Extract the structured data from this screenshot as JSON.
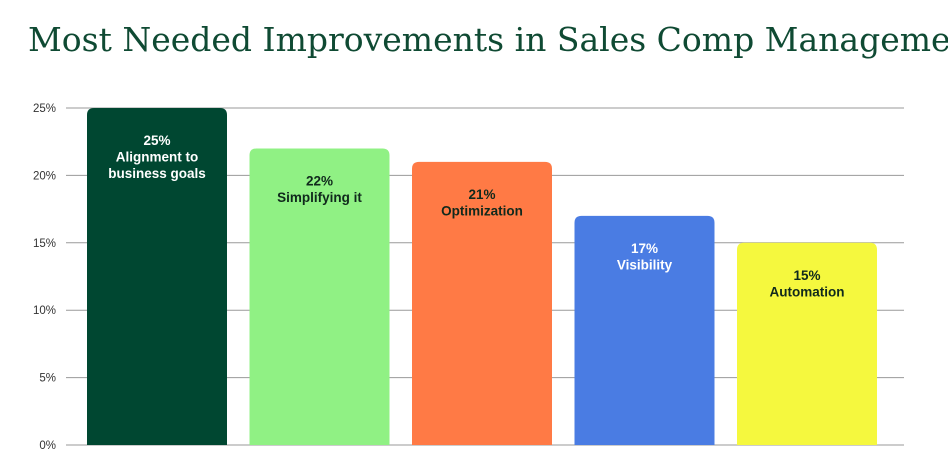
{
  "chart_data": {
    "type": "bar",
    "title": "Most Needed Improvements in Sales Comp Management",
    "xlabel": "",
    "ylabel": "",
    "ylim": [
      0,
      25
    ],
    "yticks": [
      0,
      5,
      10,
      15,
      20,
      25
    ],
    "ytick_labels": [
      "0%",
      "5%",
      "10%",
      "15%",
      "20%",
      "25%"
    ],
    "grid": true,
    "legend": "none",
    "bars": [
      {
        "category": "Alignment to business goals",
        "value": 25,
        "value_label": "25%",
        "label_lines": [
          "Alignment to",
          "business goals"
        ],
        "color": "#004731",
        "text_color": "#ffffff"
      },
      {
        "category": "Simplifying it",
        "value": 22,
        "value_label": "22%",
        "label_lines": [
          "Simplifying it"
        ],
        "color": "#90f184",
        "text_color": "#10291c"
      },
      {
        "category": "Optimization",
        "value": 21,
        "value_label": "21%",
        "label_lines": [
          "Optimization"
        ],
        "color": "#ff7a45",
        "text_color": "#10291c"
      },
      {
        "category": "Visibility",
        "value": 17,
        "value_label": "17%",
        "label_lines": [
          "Visibility"
        ],
        "color": "#4a7ce3",
        "text_color": "#ffffff"
      },
      {
        "category": "Automation",
        "value": 15,
        "value_label": "15%",
        "label_lines": [
          "Automation"
        ],
        "color": "#f5f83e",
        "text_color": "#10291c"
      }
    ]
  }
}
